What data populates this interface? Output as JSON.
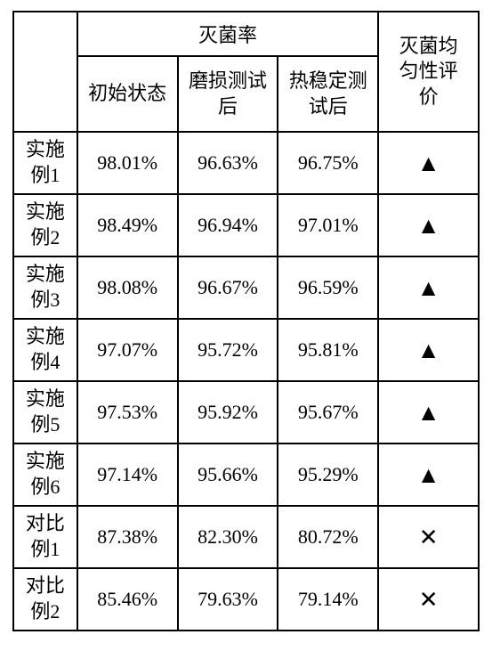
{
  "table": {
    "header": {
      "mainGroup": "灭菌率",
      "sub1": "初始状态",
      "sub2": "磨损测试后",
      "sub3": "热稳定测试后",
      "eval": "灭菌均匀性评价"
    },
    "rows": [
      {
        "label": "实施例1",
        "c1": "98.01%",
        "c2": "96.63%",
        "c3": "96.75%",
        "eval": "▲"
      },
      {
        "label": "实施例2",
        "c1": "98.49%",
        "c2": "96.94%",
        "c3": "97.01%",
        "eval": "▲"
      },
      {
        "label": "实施例3",
        "c1": "98.08%",
        "c2": "96.67%",
        "c3": "96.59%",
        "eval": "▲"
      },
      {
        "label": "实施例4",
        "c1": "97.07%",
        "c2": "95.72%",
        "c3": "95.81%",
        "eval": "▲"
      },
      {
        "label": "实施例5",
        "c1": "97.53%",
        "c2": "95.92%",
        "c3": "95.67%",
        "eval": "▲"
      },
      {
        "label": "实施例6",
        "c1": "97.14%",
        "c2": "95.66%",
        "c3": "95.29%",
        "eval": "▲"
      },
      {
        "label": "对比例1",
        "c1": "87.38%",
        "c2": "82.30%",
        "c3": "80.72%",
        "eval": "✕"
      },
      {
        "label": "对比例2",
        "c1": "85.46%",
        "c2": "79.63%",
        "c3": "79.14%",
        "eval": "✕"
      }
    ]
  }
}
